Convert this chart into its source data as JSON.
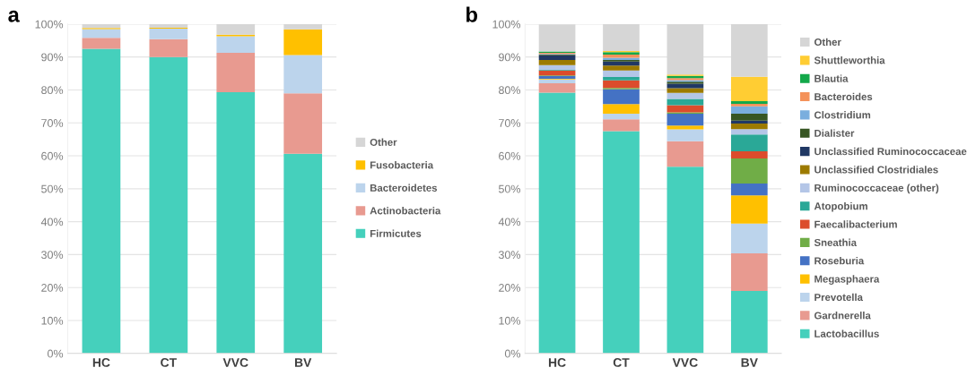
{
  "chart_data": [
    {
      "type": "bar",
      "title": "a",
      "stacked": true,
      "categories": [
        "HC",
        "CT",
        "VVC",
        "BV"
      ],
      "ylim": [
        0,
        100
      ],
      "yticks": [
        {
          "value": 0,
          "label": "0%"
        },
        {
          "value": 10,
          "label": "10%"
        },
        {
          "value": 20,
          "label": "20%"
        },
        {
          "value": 30,
          "label": "30%"
        },
        {
          "value": 40,
          "label": "40%"
        },
        {
          "value": 50,
          "label": "50%"
        },
        {
          "value": 60,
          "label": "60%"
        },
        {
          "value": 70,
          "label": "70%"
        },
        {
          "value": 80,
          "label": "80%"
        },
        {
          "value": 90,
          "label": "90%"
        },
        {
          "value": 100,
          "label": "100%"
        }
      ],
      "grid": "y",
      "legend": "right",
      "series": [
        {
          "name": "Firmicutes",
          "color": "#45d0bc",
          "values": [
            92.5,
            90.0,
            79.3,
            60.6
          ]
        },
        {
          "name": "Actinobacteria",
          "color": "#e89a90",
          "values": [
            3.3,
            5.4,
            12.0,
            18.4
          ]
        },
        {
          "name": "Bacteroidetes",
          "color": "#bcd4ec",
          "values": [
            2.7,
            3.2,
            5.0,
            11.6
          ]
        },
        {
          "name": "Fusobacteria",
          "color": "#ffc000",
          "values": [
            0.3,
            0.3,
            0.5,
            7.8
          ]
        },
        {
          "name": "Other",
          "color": "#d6d6d6",
          "values": [
            1.2,
            1.1,
            3.2,
            1.6
          ]
        }
      ]
    },
    {
      "type": "bar",
      "title": "b",
      "stacked": true,
      "categories": [
        "HC",
        "CT",
        "VVC",
        "BV"
      ],
      "ylim": [
        0,
        100
      ],
      "yticks": [
        {
          "value": 0,
          "label": "0%"
        },
        {
          "value": 10,
          "label": "10%"
        },
        {
          "value": 20,
          "label": "20%"
        },
        {
          "value": 30,
          "label": "30%"
        },
        {
          "value": 40,
          "label": "40%"
        },
        {
          "value": 50,
          "label": "50%"
        },
        {
          "value": 60,
          "label": "60%"
        },
        {
          "value": 70,
          "label": "70%"
        },
        {
          "value": 80,
          "label": "80%"
        },
        {
          "value": 90,
          "label": "90%"
        },
        {
          "value": 100,
          "label": "100%"
        }
      ],
      "grid": "y",
      "legend": "right",
      "series": [
        {
          "name": "Lactobacillus",
          "color": "#45d0bc",
          "values": [
            79.2,
            67.5,
            56.7,
            19.0
          ]
        },
        {
          "name": "Gardnerella",
          "color": "#e89a90",
          "values": [
            2.8,
            3.6,
            7.7,
            11.4
          ]
        },
        {
          "name": "Prevotella",
          "color": "#bcd4ec",
          "values": [
            1.2,
            1.7,
            3.6,
            9.0
          ]
        },
        {
          "name": "Megasphaera",
          "color": "#ffc000",
          "values": [
            0.2,
            2.9,
            1.2,
            8.6
          ]
        },
        {
          "name": "Roseburia",
          "color": "#4472c4",
          "values": [
            0.8,
            4.5,
            3.6,
            3.6
          ]
        },
        {
          "name": "Sneathia",
          "color": "#70ad47",
          "values": [
            0.2,
            0.4,
            0.4,
            7.6
          ]
        },
        {
          "name": "Faecalibacterium",
          "color": "#dc4c2c",
          "values": [
            1.5,
            2.3,
            2.2,
            2.2
          ]
        },
        {
          "name": "Atopobium",
          "color": "#2aa897",
          "values": [
            0.2,
            1.0,
            1.9,
            5.1
          ]
        },
        {
          "name": "Ruminococcaceae (other)",
          "color": "#b4c6e7",
          "values": [
            1.4,
            2.0,
            1.8,
            1.6
          ]
        },
        {
          "name": "Unclassified Clostridiales",
          "color": "#9c7a00",
          "values": [
            1.6,
            1.5,
            1.4,
            1.7
          ]
        },
        {
          "name": "Unclassified Ruminococcaceae",
          "color": "#203864",
          "values": [
            1.4,
            1.2,
            1.4,
            0.9
          ]
        },
        {
          "name": "Dialister",
          "color": "#375623",
          "values": [
            0.2,
            0.5,
            0.6,
            2.1
          ]
        },
        {
          "name": "Clostridium",
          "color": "#7aaede",
          "values": [
            0.2,
            0.7,
            0.5,
            2.2
          ]
        },
        {
          "name": "Bacteroides",
          "color": "#f4925a",
          "values": [
            0.4,
            0.9,
            0.6,
            0.8
          ]
        },
        {
          "name": "Blautia",
          "color": "#13a84a",
          "values": [
            0.4,
            0.8,
            0.7,
            0.8
          ]
        },
        {
          "name": "Shuttleworthia",
          "color": "#ffcd33",
          "values": [
            null,
            0.3,
            0.4,
            7.4
          ]
        },
        {
          "name": "Other",
          "color": "#d6d6d6",
          "values": [
            8.2,
            8.2,
            15.3,
            16.0
          ]
        }
      ]
    }
  ]
}
